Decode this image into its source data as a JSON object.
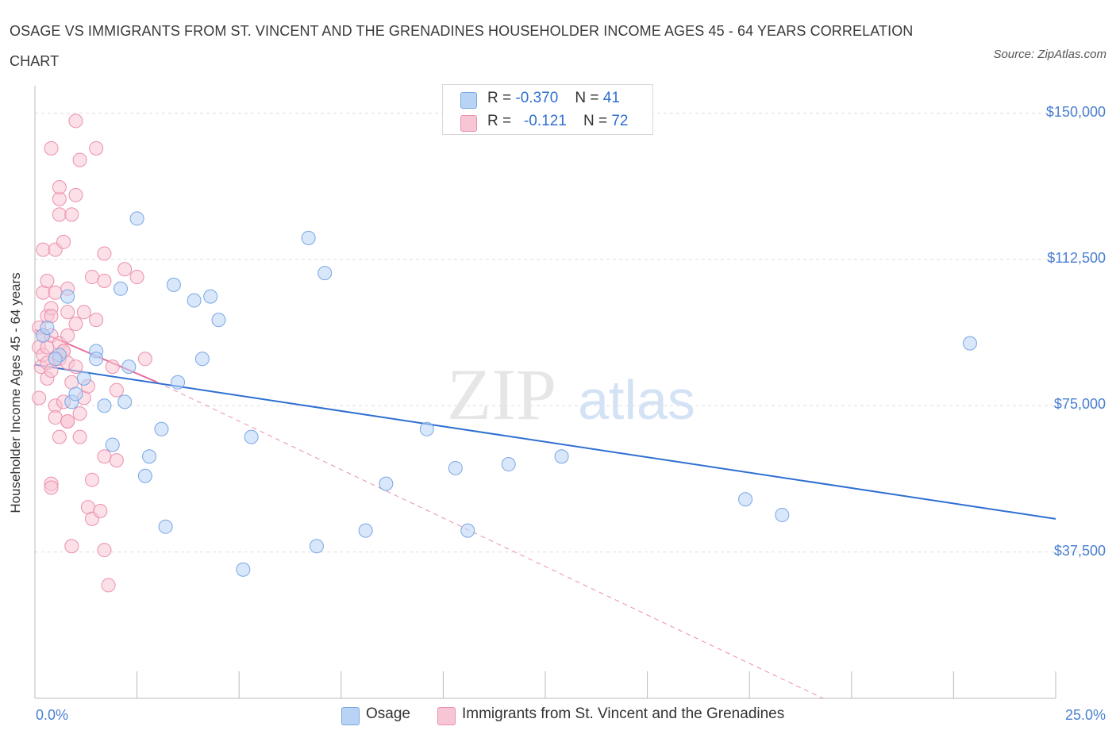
{
  "title": "OSAGE VS IMMIGRANTS FROM ST. VINCENT AND THE GRENADINES HOUSEHOLDER INCOME AGES 45 - 64 YEARS CORRELATION CHART",
  "source": "Source: ZipAtlas.com",
  "watermark": {
    "zip": "ZIP",
    "atlas": "atlas"
  },
  "colors": {
    "osage_fill": "#b9d3f5",
    "osage_stroke": "#7aa6e4",
    "osage_line": "#2e6fd1",
    "svg_fill": "#f7c6d5",
    "svg_stroke": "#ec8fab",
    "svg_line": "#e8709a",
    "tick_text": "#4a7fd0",
    "grid": "#dddddd"
  },
  "legend": {
    "rows": [
      {
        "r_label": "R =",
        "r_value": "-0.370",
        "n_label": "N =",
        "n_value": "41"
      },
      {
        "r_label": "R =",
        "r_value": "-0.121",
        "n_label": "N =",
        "n_value": "72"
      }
    ]
  },
  "chart_data": {
    "type": "scatter",
    "title": "OSAGE VS IMMIGRANTS FROM ST. VINCENT AND THE GRENADINES HOUSEHOLDER INCOME AGES 45 - 64 YEARS CORRELATION CHART",
    "xlabel": "",
    "ylabel": "Householder Income Ages 45 - 64 years",
    "xlim": [
      0,
      25
    ],
    "ylim": [
      0,
      155000
    ],
    "x_tick_labels": [
      "0.0%",
      "25.0%"
    ],
    "y_ticks": [
      37500,
      75000,
      112500,
      150000
    ],
    "y_tick_labels": [
      "$37,500",
      "$75,000",
      "$112,500",
      "$150,000"
    ],
    "grid": true,
    "legend_position": "bottom",
    "series": [
      {
        "name": "Osage",
        "points": [
          [
            0.2,
            93000
          ],
          [
            0.3,
            95000
          ],
          [
            0.6,
            88000
          ],
          [
            0.8,
            103000
          ],
          [
            0.9,
            76000
          ],
          [
            1.0,
            78000
          ],
          [
            1.2,
            82000
          ],
          [
            1.5,
            89000
          ],
          [
            1.5,
            87000
          ],
          [
            1.7,
            75000
          ],
          [
            1.9,
            65000
          ],
          [
            2.1,
            105000
          ],
          [
            2.2,
            76000
          ],
          [
            2.3,
            85000
          ],
          [
            2.5,
            123000
          ],
          [
            2.7,
            57000
          ],
          [
            2.8,
            62000
          ],
          [
            3.1,
            69000
          ],
          [
            3.2,
            44000
          ],
          [
            3.4,
            106000
          ],
          [
            3.5,
            81000
          ],
          [
            3.9,
            102000
          ],
          [
            4.1,
            87000
          ],
          [
            4.3,
            103000
          ],
          [
            4.5,
            97000
          ],
          [
            5.1,
            33000
          ],
          [
            5.3,
            67000
          ],
          [
            6.7,
            118000
          ],
          [
            6.9,
            39000
          ],
          [
            7.1,
            109000
          ],
          [
            8.1,
            43000
          ],
          [
            8.6,
            55000
          ],
          [
            9.6,
            69000
          ],
          [
            10.3,
            59000
          ],
          [
            10.6,
            43000
          ],
          [
            11.6,
            60000
          ],
          [
            12.9,
            62000
          ],
          [
            17.4,
            51000
          ],
          [
            18.3,
            47000
          ],
          [
            22.9,
            91000
          ],
          [
            0.5,
            87000
          ]
        ],
        "trend": {
          "x": [
            0,
            25
          ],
          "y": [
            85500,
            46000
          ]
        }
      },
      {
        "name": "Immigrants from St. Vincent and the Grenadines",
        "points": [
          [
            0.1,
            77000
          ],
          [
            0.1,
            90000
          ],
          [
            0.1,
            95000
          ],
          [
            0.15,
            85000
          ],
          [
            0.2,
            93000
          ],
          [
            0.2,
            88000
          ],
          [
            0.2,
            104000
          ],
          [
            0.2,
            115000
          ],
          [
            0.3,
            98000
          ],
          [
            0.3,
            82000
          ],
          [
            0.3,
            107000
          ],
          [
            0.3,
            90000
          ],
          [
            0.3,
            86000
          ],
          [
            0.4,
            100000
          ],
          [
            0.4,
            98000
          ],
          [
            0.4,
            93000
          ],
          [
            0.4,
            84000
          ],
          [
            0.4,
            55000
          ],
          [
            0.4,
            54000
          ],
          [
            0.4,
            141000
          ],
          [
            0.5,
            115000
          ],
          [
            0.5,
            104000
          ],
          [
            0.5,
            87000
          ],
          [
            0.5,
            75000
          ],
          [
            0.5,
            72000
          ],
          [
            0.6,
            128000
          ],
          [
            0.6,
            91000
          ],
          [
            0.6,
            87000
          ],
          [
            0.6,
            124000
          ],
          [
            0.6,
            67000
          ],
          [
            0.6,
            131000
          ],
          [
            0.7,
            117000
          ],
          [
            0.7,
            89000
          ],
          [
            0.7,
            76000
          ],
          [
            0.7,
            89000
          ],
          [
            0.8,
            99000
          ],
          [
            0.8,
            105000
          ],
          [
            0.8,
            93000
          ],
          [
            0.8,
            71000
          ],
          [
            0.8,
            71000
          ],
          [
            0.8,
            86000
          ],
          [
            0.9,
            39000
          ],
          [
            0.9,
            81000
          ],
          [
            0.9,
            124000
          ],
          [
            1.0,
            129000
          ],
          [
            1.0,
            85000
          ],
          [
            1.0,
            96000
          ],
          [
            1.1,
            73000
          ],
          [
            1.1,
            67000
          ],
          [
            1.2,
            99000
          ],
          [
            1.2,
            77000
          ],
          [
            1.3,
            80000
          ],
          [
            1.3,
            49000
          ],
          [
            1.4,
            46000
          ],
          [
            1.4,
            108000
          ],
          [
            1.4,
            56000
          ],
          [
            1.5,
            97000
          ],
          [
            1.5,
            141000
          ],
          [
            1.6,
            48000
          ],
          [
            1.7,
            62000
          ],
          [
            1.7,
            38000
          ],
          [
            1.7,
            107000
          ],
          [
            1.7,
            114000
          ],
          [
            1.8,
            29000
          ],
          [
            1.9,
            85000
          ],
          [
            2.0,
            79000
          ],
          [
            2.0,
            61000
          ],
          [
            2.2,
            110000
          ],
          [
            2.5,
            108000
          ],
          [
            2.7,
            87000
          ],
          [
            1.0,
            148000
          ],
          [
            1.1,
            138000
          ]
        ],
        "trend": {
          "x": [
            0,
            3.0
          ],
          "y": [
            94500,
            81000
          ]
        },
        "trend_extension": {
          "x": [
            3.0,
            19.3
          ],
          "y": [
            81000,
            0
          ]
        }
      }
    ]
  },
  "bottom_legend": {
    "items": [
      "Osage",
      "Immigrants from St. Vincent and the Grenadines"
    ]
  }
}
